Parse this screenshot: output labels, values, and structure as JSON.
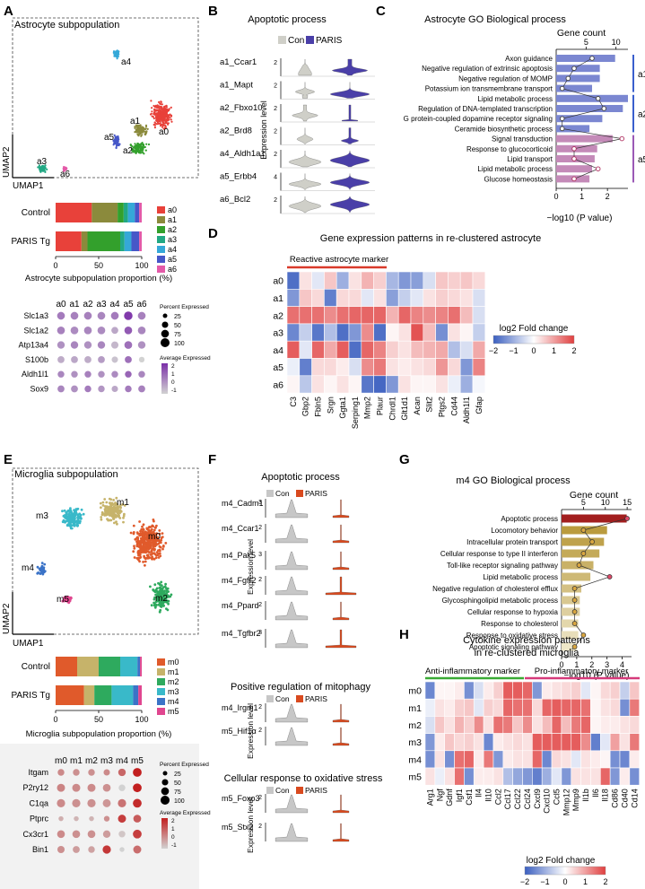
{
  "panel_letters": [
    "A",
    "B",
    "C",
    "D",
    "E",
    "F",
    "G",
    "H"
  ],
  "colors": {
    "astro": [
      "#e8413a",
      "#8b8a3c",
      "#33a02c",
      "#22a884",
      "#35a8d8",
      "#4657c8",
      "#e45aa8"
    ],
    "micro": [
      "#e05a2b",
      "#c6b36a",
      "#2eaa5e",
      "#39b9c9",
      "#3b73c7",
      "#e0468f"
    ],
    "con": "#cfcfc8",
    "paris_b": "#4a3fa8",
    "paris_f": "#d94a1f",
    "dot_purple_hi": "#7b2fa8",
    "dot_red_hi": "#c21f1f",
    "go_astro_bar": "#7b87d1",
    "go_m4_bar": "#c9a84a",
    "go_m4_top": "#a21e1e",
    "hm_low": "#3b5fc0",
    "hm_high": "#e04040",
    "astro_bracket": [
      "#3a5fcd",
      "#3a5fcd",
      "#9b59b6"
    ],
    "hm_h_anti": "#3aaa35",
    "hm_h_pro": "#d63a7a"
  },
  "A": {
    "title": "Astrocyte subpopulation",
    "x_axis_label": "UMAP1",
    "y_axis_label": "UMAP2",
    "cluster_labels": [
      "a0",
      "a1",
      "a2",
      "a3",
      "a4",
      "a5",
      "a6"
    ],
    "bar_chart": {
      "rows": [
        "Control",
        "PARIS Tg"
      ],
      "legend": [
        "a0",
        "a1",
        "a2",
        "a3",
        "a4",
        "a5",
        "a6"
      ],
      "values": [
        [
          42,
          30,
          7,
          5,
          8,
          5,
          3
        ],
        [
          30,
          7,
          38,
          5,
          8,
          9,
          3
        ]
      ],
      "ticks": [
        "0",
        "50",
        "100"
      ],
      "xlabel": "Astrocyte subpopulation proportion (%)"
    },
    "dot_plot": {
      "columns": [
        "a0",
        "a1",
        "a2",
        "a3",
        "a4",
        "a5",
        "a6"
      ],
      "genes": [
        "Slc1a3",
        "Slc1a2",
        "Atp13a4",
        "S100b",
        "Aldh1l1",
        "Sox9"
      ],
      "pct": [
        [
          75,
          75,
          75,
          75,
          75,
          90,
          75
        ],
        [
          75,
          75,
          75,
          75,
          60,
          75,
          75
        ],
        [
          70,
          70,
          70,
          70,
          65,
          75,
          70
        ],
        [
          60,
          60,
          60,
          60,
          50,
          60,
          40
        ],
        [
          55,
          55,
          55,
          55,
          55,
          55,
          55
        ],
        [
          60,
          60,
          55,
          55,
          50,
          55,
          60
        ]
      ],
      "avg": [
        [
          0.6,
          0.5,
          0.5,
          0.4,
          0.6,
          1.8,
          0.5
        ],
        [
          0.5,
          0.3,
          0.4,
          0.3,
          -0.2,
          1.2,
          0.4
        ],
        [
          0.2,
          0.4,
          0.2,
          0.4,
          -0.5,
          0.8,
          0.2
        ],
        [
          -0.3,
          -0.2,
          -0.3,
          0.0,
          -0.7,
          0.8,
          -1.0
        ],
        [
          0.4,
          0.2,
          0.5,
          0.2,
          0.3,
          1.0,
          0.4
        ],
        [
          0.4,
          0.2,
          0.6,
          0.1,
          -0.2,
          0.6,
          0.5
        ]
      ],
      "size_legend_title": "Percent Expressed",
      "size_legend": [
        "25",
        "50",
        "75",
        "100"
      ],
      "color_legend_title": "Average Expressed",
      "color_legend": [
        "2",
        "1",
        "0",
        "-1"
      ]
    }
  },
  "B": {
    "title": "Apoptotic process",
    "legend": [
      "Con",
      "PARIS"
    ],
    "ylabel": "Expression level",
    "rows": [
      {
        "label": "a1_Ccar1",
        "max": "2"
      },
      {
        "label": "a1_Mapt",
        "max": "2"
      },
      {
        "label": "a2_Fbxo10",
        "max": "2"
      },
      {
        "label": "a2_Brd8",
        "max": "2"
      },
      {
        "label": "a4_Aldh1a1",
        "max": "2"
      },
      {
        "label": "a5_Erbb4",
        "max": "4"
      },
      {
        "label": "a6_Bcl2",
        "max": "2"
      }
    ]
  },
  "C": {
    "title": "Astrocyte GO Biological process",
    "count_label": "Gene count",
    "count_ticks": [
      "5",
      "10"
    ],
    "xlabel": "−log10 (P value)",
    "x_ticks": [
      "0",
      "1",
      "2"
    ],
    "terms": [
      "Axon guidance",
      "Negative regulation of extrinsic apoptosis",
      "Negative regulation of MOMP",
      "Potassium ion transmembrane transport",
      "Lipid metabolic process",
      "Regulation of DNA-templated transcription",
      "G protein-coupled dopamine receptor signaling",
      "Ceramide biosynthetic process",
      "Signal transduction",
      "Response to glucocorticoid",
      "Lipid transport",
      "Lipid metabolic process",
      "Glucose homeostasis"
    ],
    "neglog10p": [
      2.3,
      1.7,
      1.7,
      1.4,
      2.8,
      2.6,
      1.8,
      1.3,
      2.2,
      1.6,
      1.5,
      1.4,
      1.3
    ],
    "gene_count": [
      6,
      3,
      2,
      1,
      7,
      8,
      1,
      1,
      11,
      3,
      3,
      7,
      3
    ],
    "groups": [
      "a1",
      "a2",
      "a5"
    ]
  },
  "D": {
    "title": "Gene expression patterns in re-clustered astrocyte",
    "marker_label": "Reactive astrocyte marker",
    "rows": [
      "a0",
      "a1",
      "a2",
      "a3",
      "a4",
      "a5",
      "a6"
    ],
    "genes": [
      "C3",
      "Gbp2",
      "Fbln5",
      "Srgn",
      "Ggta1",
      "Serping1",
      "Mmp2",
      "Plaur",
      "Chrdl1",
      "Glt1d1",
      "Acan",
      "Slit2",
      "Ptgs2",
      "Cd44",
      "Aldh1l1",
      "Gfap"
    ],
    "values": [
      [
        -1.8,
        0.3,
        -0.3,
        0.6,
        -1.0,
        0.3,
        0.8,
        0.5,
        -0.9,
        -1.3,
        -1.2,
        -0.4,
        0.6,
        0.5,
        0.6,
        0.4
      ],
      [
        -1.3,
        0.6,
        0.4,
        -1.6,
        0.4,
        0.4,
        -0.3,
        0.3,
        -1.2,
        -0.6,
        -0.3,
        0.3,
        0.5,
        0.4,
        0.3,
        -0.4
      ],
      [
        1.5,
        1.5,
        1.5,
        1.2,
        1.5,
        1.6,
        1.6,
        1.6,
        0.8,
        1.6,
        1.3,
        1.2,
        1.3,
        1.5,
        0.7,
        -0.4
      ],
      [
        -1.5,
        -0.6,
        -1.7,
        -0.8,
        -1.8,
        -1.3,
        1.2,
        -1.8,
        0.1,
        0.3,
        1.8,
        0.7,
        -1.4,
        0.3,
        0.1,
        -0.6
      ],
      [
        1.7,
        -0.3,
        1.6,
        0.9,
        1.7,
        -1.8,
        1.6,
        1.3,
        0.5,
        0.3,
        0.7,
        0.8,
        0.9,
        -0.8,
        -0.4,
        0.9
      ],
      [
        -0.2,
        -1.6,
        0.4,
        0.4,
        0.2,
        -0.4,
        1.2,
        1.4,
        0.3,
        0.2,
        0.3,
        0.4,
        1.1,
        0.4,
        -1.3,
        1.3
      ],
      [
        0.1,
        -0.7,
        0.3,
        0.1,
        0.3,
        0.1,
        -1.7,
        -1.9,
        -1.3,
        0.3,
        0.1,
        0.1,
        0.3,
        -0.2,
        -1.0,
        -0.1
      ]
    ],
    "legend_title": "log2 Fold change",
    "legend_ticks": [
      "−2",
      "−1",
      "0",
      "1",
      "2"
    ]
  },
  "E": {
    "title": "Microglia subpopulation",
    "x_axis_label": "UMAP1",
    "y_axis_label": "UMAP2",
    "cluster_labels": [
      "m0",
      "m1",
      "m2",
      "m3",
      "m4",
      "m5"
    ],
    "bar_chart": {
      "rows": [
        "Control",
        "PARIS Tg"
      ],
      "legend": [
        "m0",
        "m1",
        "m2",
        "m3",
        "m4",
        "m5"
      ],
      "values": [
        [
          25,
          25,
          25,
          20,
          3,
          2
        ],
        [
          33,
          12,
          20,
          25,
          6,
          4
        ]
      ],
      "ticks": [
        "0",
        "50",
        "100"
      ],
      "xlabel": "Microglia subpopulation proportion (%)"
    },
    "dot_plot": {
      "columns": [
        "m0",
        "m1",
        "m2",
        "m3",
        "m4",
        "m5"
      ],
      "genes": [
        "Itgam",
        "P2ry12",
        "C1qa",
        "Ptprc",
        "Cx3cr1",
        "Bin1"
      ],
      "pct": [
        [
          55,
          55,
          55,
          50,
          70,
          95
        ],
        [
          80,
          80,
          80,
          75,
          55,
          95
        ],
        [
          85,
          85,
          85,
          80,
          85,
          95
        ],
        [
          30,
          30,
          30,
          40,
          80,
          75
        ],
        [
          75,
          75,
          75,
          70,
          55,
          95
        ],
        [
          65,
          60,
          55,
          85,
          30,
          80
        ]
      ],
      "avg": [
        [
          0.2,
          0.1,
          0.1,
          0.2,
          0.8,
          2.0
        ],
        [
          0.3,
          0.2,
          0.2,
          0.1,
          -1.0,
          2.0
        ],
        [
          0.2,
          0.1,
          0.1,
          0.0,
          0.6,
          1.8
        ],
        [
          -0.4,
          -0.5,
          -0.5,
          0.1,
          1.5,
          1.0
        ],
        [
          0.2,
          0.1,
          0.1,
          -0.1,
          -0.8,
          1.5
        ],
        [
          0.1,
          -0.1,
          -0.2,
          1.6,
          -1.0,
          0.7
        ]
      ],
      "size_legend_title": "Percent Expressed",
      "size_legend": [
        "25",
        "50",
        "75",
        "100"
      ],
      "color_legend_title": "Average Expressed",
      "color_legend": [
        "2",
        "1",
        "0",
        "-1"
      ]
    }
  },
  "F": {
    "legend": [
      "Con",
      "PARIS"
    ],
    "ylabel": "Expression level",
    "groups": [
      {
        "title": "Apoptotic process",
        "rows": [
          {
            "label": "m4_Cadm1",
            "max": "3"
          },
          {
            "label": "m4_Ccar1",
            "max": "2"
          },
          {
            "label": "m4_Pak5",
            "max": "3"
          },
          {
            "label": "m4_Fgfr2",
            "max": "2"
          },
          {
            "label": "m4_Ppard",
            "max": "2"
          },
          {
            "label": "m4_Tgfbr2",
            "max": "3"
          }
        ]
      },
      {
        "title": "Positive regulation of mitophagy",
        "rows": [
          {
            "label": "m4_Irgm1",
            "max": "2"
          },
          {
            "label": "m5_Hif1α",
            "max": "2"
          }
        ]
      },
      {
        "title": "Cellular response to oxidative stress",
        "rows": [
          {
            "label": "m5_Foxo3",
            "max": "2"
          },
          {
            "label": "m5_Stx2",
            "max": "2"
          }
        ]
      }
    ]
  },
  "G": {
    "title": "m4 GO Biological process",
    "count_label": "Gene count",
    "count_ticks": [
      "5",
      "10",
      "15"
    ],
    "xlabel": "−log10 (P value)",
    "x_ticks": [
      "0",
      "1",
      "2",
      "3",
      "4"
    ],
    "terms": [
      "Apoptotic process",
      "Locomotory behavior",
      "Intracellular protein transport",
      "Cellular response to type II interferon",
      "Toll-like receptor signaling pathway",
      "Lipid metabolic process",
      "Negative regulation of cholesterol efflux",
      "Glycosphingolipid metabolic process",
      "Cellular response to hypoxia",
      "Response to cholesterol",
      "Response to oxidative stress",
      "Apoptotic signaling pathway"
    ],
    "neglog10p": [
      4.3,
      3.0,
      2.8,
      2.5,
      2.1,
      1.9,
      1.3,
      1.2,
      1.2,
      1.1,
      1.1,
      1.0
    ],
    "gene_count": [
      15,
      5,
      7,
      5,
      4,
      11,
      3,
      3,
      3,
      3,
      5,
      3
    ]
  },
  "H": {
    "title_line1": "Cytokine expression patterns",
    "title_line2": "in re-clustered microglia",
    "anti_label": "Anti-inflammatory marker",
    "pro_label": "Pro-inflammatory marker",
    "rows": [
      "m0",
      "m1",
      "m2",
      "m3",
      "m4",
      "m5"
    ],
    "genes": [
      "Arg1",
      "Ngf",
      "Gdnf",
      "Igf1",
      "Csf1",
      "Il4",
      "Il10",
      "Ccl2",
      "Ccl17",
      "Ccl22",
      "Ccl24",
      "Cxcl9",
      "Cxcl10",
      "Ccl5",
      "Mmp12",
      "Mmp9",
      "Il1b",
      "Il6",
      "Il18",
      "Cd86",
      "Cd40",
      "Cd14"
    ],
    "values": [
      [
        -1.5,
        0.1,
        0.1,
        0.2,
        -1.4,
        -0.4,
        0.2,
        0.5,
        1.7,
        1.7,
        1.6,
        -1.3,
        0.2,
        0.3,
        0.4,
        0.5,
        -0.3,
        0.1,
        0.4,
        0.5,
        -0.6,
        0.6
      ],
      [
        -0.2,
        0.3,
        0.2,
        0.5,
        0.6,
        -0.3,
        0.5,
        0.4,
        1.6,
        1.5,
        1.5,
        0.4,
        1.6,
        1.7,
        1.6,
        1.6,
        1.5,
        0.1,
        0.3,
        0.4,
        -1.4,
        1.4
      ],
      [
        -0.4,
        0.6,
        0.3,
        0.8,
        0.5,
        1.2,
        0.3,
        1.5,
        1.4,
        0.6,
        1.2,
        0.3,
        0.7,
        1.6,
        0.7,
        1.4,
        1.6,
        0.1,
        0.2,
        0.2,
        0.3,
        0.4
      ],
      [
        -1.3,
        0.2,
        0.6,
        0.4,
        0.5,
        0.3,
        -1.5,
        0.2,
        0.3,
        0.4,
        0.3,
        1.7,
        1.7,
        1.7,
        1.7,
        1.7,
        1.2,
        -1.6,
        -0.3,
        1.0,
        0.3,
        1.4
      ],
      [
        -1.4,
        0.3,
        -1.4,
        1.5,
        1.6,
        0.2,
        1.4,
        -1.3,
        0.2,
        0.3,
        0.3,
        1.6,
        -1.5,
        0.4,
        0.3,
        -0.3,
        0.3,
        0.2,
        0.1,
        -1.4,
        -1.5,
        0.2
      ],
      [
        0.3,
        -0.2,
        0.3,
        1.5,
        -1.4,
        0.2,
        0.2,
        0.3,
        -0.8,
        -1.1,
        -1.3,
        -1.6,
        -1.0,
        -0.3,
        -1.3,
        0.3,
        0.3,
        0.3,
        1.6,
        -1.3,
        0.2,
        -1.4
      ]
    ],
    "legend_title": "log2 Fold change",
    "legend_ticks": [
      "−2",
      "−1",
      "0",
      "1",
      "2"
    ]
  }
}
